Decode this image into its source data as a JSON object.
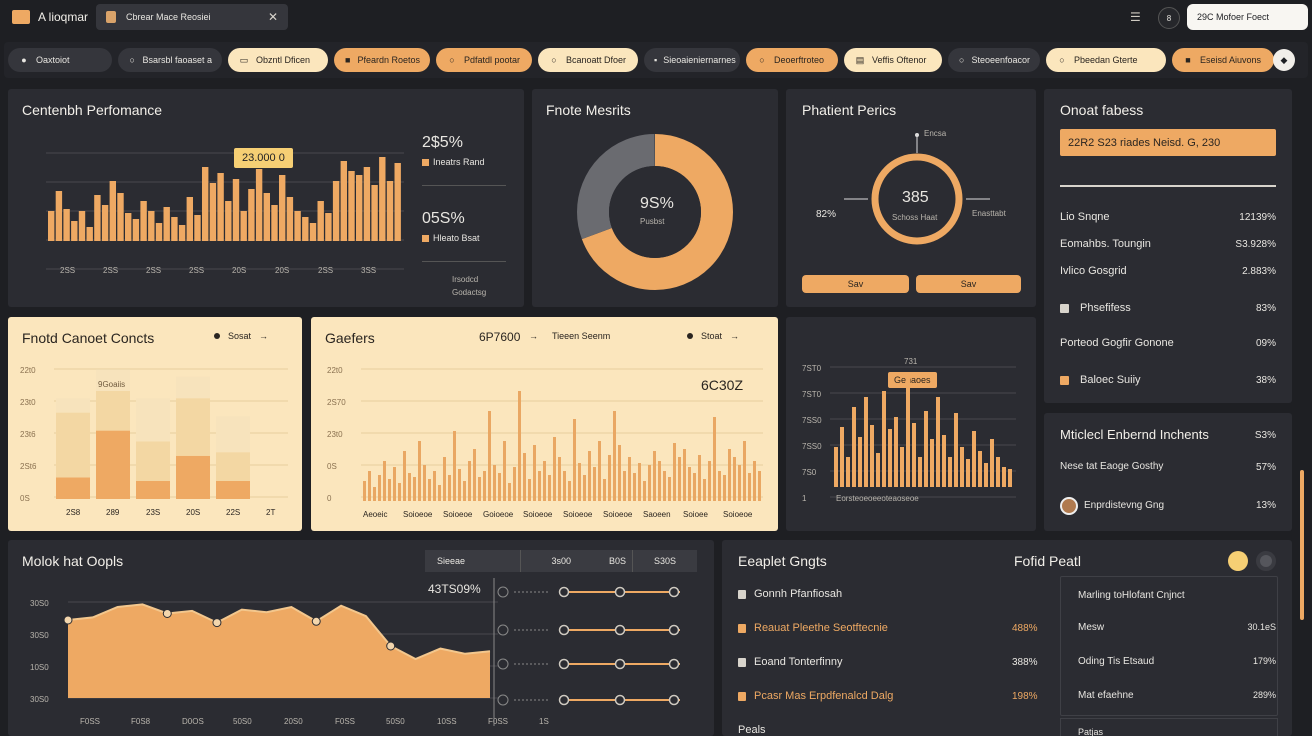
{
  "app": {
    "title": "A lioqmar",
    "tab_label": "Cbrear Mace Reosiei",
    "search_placeholder": "29C Mofoer Foect",
    "badge": "8"
  },
  "colors": {
    "bg": "#1e1f23",
    "panel": "#2b2c32",
    "accent": "#eea963",
    "cream": "#fbe6bd"
  },
  "chips": [
    {
      "label": "Oaxtoiot",
      "icon": "dot-icon",
      "style": "dark"
    },
    {
      "label": "Bsarsbl faoaset a",
      "icon": "circle-icon",
      "style": "dark"
    },
    {
      "label": "Obzntl Dficen",
      "icon": "folder-icon",
      "style": "cream"
    },
    {
      "label": "Pfeardn Roetos",
      "icon": "square-icon",
      "style": "orange"
    },
    {
      "label": "Pdfatdl pootar",
      "icon": "circle-icon",
      "style": "orange"
    },
    {
      "label": "Bcanoatt Dfoer",
      "icon": "circle-icon",
      "style": "cream"
    },
    {
      "label": "Sieoaieniernarnes",
      "icon": "card-icon",
      "style": "dark"
    },
    {
      "label": "Deoerftroteo",
      "icon": "circle-icon",
      "style": "orange"
    },
    {
      "label": "Veffis Oftenor",
      "icon": "doc-icon",
      "style": "cream"
    },
    {
      "label": "Steoeenfoacor",
      "icon": "circle-icon",
      "style": "dark"
    },
    {
      "label": "Pbeedan Gterte",
      "icon": "circle-icon",
      "style": "cream"
    },
    {
      "label": "Eseisd Aiuvons",
      "icon": "square-icon",
      "style": "orange"
    }
  ],
  "content_perf": {
    "title": "Centenbh Perfomance",
    "tooltip": "23.000 0",
    "x_ticks": [
      "2SS",
      "2SS",
      "2SS",
      "2SS",
      "20S",
      "20S",
      "2SS",
      "3SS"
    ],
    "stat1_value": "2$5%",
    "stat1_label": "Ineatrs Rand",
    "stat2_value": "05S%",
    "stat2_label": "Hleato Bsat",
    "footer1": "Irsodcd",
    "footer2": "Godactsg"
  },
  "finance": {
    "title": "Fnote Mesrits",
    "center_value": "9S%",
    "center_label": "Pusbst"
  },
  "patient": {
    "title": "Phatient Perics",
    "value": "385",
    "sub": "Schoss Haat",
    "left": "82%",
    "right": "Enasttabt",
    "top": "Encsa",
    "btn1": "Sav",
    "btn2": "Sav"
  },
  "contacts": {
    "title": "Onoat fabess",
    "banner": "22R2 S23 riades Neisd. G, 230",
    "rows": [
      {
        "label": "Lio Snqne",
        "value": "12139%",
        "icon": ""
      },
      {
        "label": "Eomahbs. Toungin",
        "value": "S3.928%",
        "icon": ""
      },
      {
        "label": "Ivlico Gosgrid",
        "value": "2.883%",
        "icon": ""
      },
      {
        "label": "Phsefifess",
        "value": "83%",
        "icon": "grid-icon"
      },
      {
        "label": "Porteod Gogfir Gonone",
        "value": "09%",
        "icon": ""
      },
      {
        "label": "Baloec Suiiy",
        "value": "38%",
        "icon": "square-icon"
      }
    ]
  },
  "project_concts": {
    "title": "Fnotd Canoet Concts",
    "toggle": "Sosat",
    "y_ticks": [
      "22t0",
      "23t0",
      "23t6",
      "2St6",
      "0S"
    ],
    "x_ticks": [
      "2S8",
      "289",
      "23S",
      "20S",
      "22S",
      "2T"
    ],
    "bar_label": "9Goaiis",
    "chart_data": {
      "type": "bar",
      "categories": [
        "2S8",
        "289",
        "23S",
        "20S",
        "22S"
      ],
      "series": [
        {
          "values": [
            6,
            19,
            5,
            12,
            5
          ]
        },
        {
          "values": [
            18,
            11,
            11,
            16,
            8
          ]
        },
        {
          "values": [
            4,
            6,
            12,
            6,
            10
          ]
        }
      ]
    }
  },
  "gaeers": {
    "title": "Gaefers",
    "value": "6P7600",
    "label": "Tieeen Seenm",
    "toggle": "Stoat",
    "big": "6C30Z",
    "y_ticks": [
      "22t0",
      "2S70",
      "23t0",
      "0S",
      "0"
    ],
    "x_ticks": [
      "Aeoeic",
      "Soioeoe",
      "Soioeoe",
      "Goioeoe",
      "Soioeoe",
      "Soioeoe",
      "Soioeoe",
      "Saoeen",
      "Soioee",
      "Soioeoe"
    ]
  },
  "mini_bars": {
    "title_val": "731",
    "tooltip": "Genaoes",
    "y_ticks": [
      "7ST0",
      "7ST0",
      "7SS0",
      "7SS0",
      "7S0",
      "1"
    ],
    "x_label": "Eorsteoeoeeoteaoseoe"
  },
  "notif": {
    "title": "Mticlecl Enbernd Inchents",
    "title_value": "S3%",
    "row1": "Nese tat Eaoge Gosthy",
    "row1_value": "57%",
    "row2": "Enprdistevng Gng",
    "row2_value": "13%"
  },
  "molok": {
    "title": "Molok hat Oopls",
    "value": "43TS09%",
    "header": [
      "Sieeae",
      "3s00",
      "B0S",
      "S30S"
    ],
    "y_ticks": [
      "30S0",
      "30S0",
      "10S0",
      "30S0"
    ],
    "x_ticks": [
      "F0SS",
      "F0S8",
      "D0OS",
      "50S0",
      "20S0",
      "F0SS",
      "50S0",
      "10SS",
      "F0SS",
      "1S"
    ],
    "chart_data": {
      "type": "area",
      "x": [
        1,
        2,
        3,
        4,
        5,
        6,
        7,
        8,
        9,
        10,
        11,
        12,
        13,
        14,
        15,
        16,
        17,
        18
      ],
      "values": [
        60,
        62,
        70,
        72,
        65,
        67,
        58,
        68,
        66,
        70,
        59,
        71,
        63,
        40,
        30,
        38,
        34,
        36
      ]
    }
  },
  "eeaplet": {
    "title": "Eeaplet Gngts",
    "right_title": "Fofid Peatl",
    "rows": [
      {
        "label": "Gonnh Pfanfiosah",
        "value": "",
        "icon": "file-icon",
        "accent": false
      },
      {
        "label": "Reauat Pleethe Seotftecnie",
        "value": "488%",
        "icon": "tag-icon",
        "accent": true
      },
      {
        "label": "Eoand Tonterfinny",
        "value": "388%",
        "icon": "file-icon",
        "accent": false
      },
      {
        "label": "Pcasr Mas Erpdfenalcd Dalg",
        "value": "198%",
        "icon": "tag-icon",
        "accent": true
      }
    ],
    "foot": "Peals",
    "right_rows": [
      {
        "label": "Marling toHlofant Cnjnct",
        "value": ""
      },
      {
        "label": "Mesw",
        "value": "30.1eS"
      },
      {
        "label": "Oding Tis Etsaud",
        "value": "179%"
      },
      {
        "label": "Mat efaehne",
        "value": "289%"
      }
    ],
    "right_foot": "Patjas"
  }
}
